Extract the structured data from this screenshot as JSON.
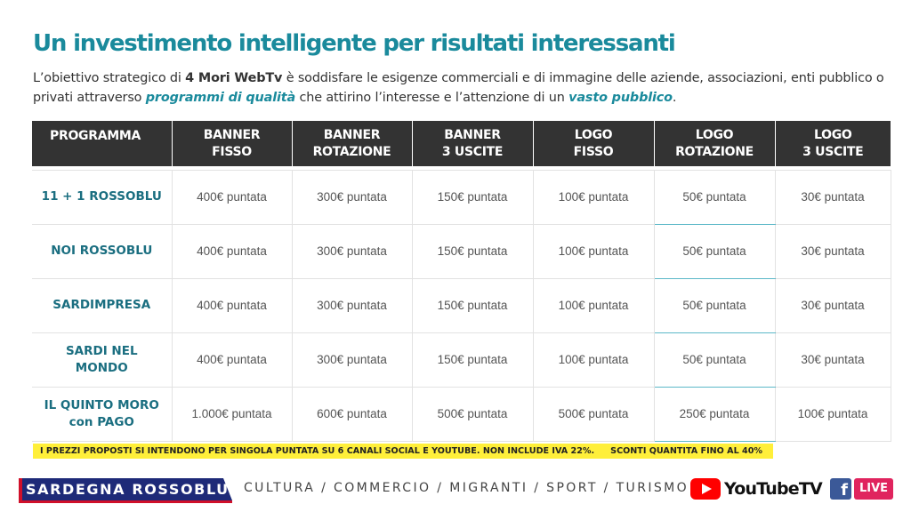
{
  "title": "Un investimento intelligente per risultati interessanti",
  "intro": {
    "part1": "L’obiettivo strategico di ",
    "brand": "4 Mori WebTv",
    "part2": " è soddisfare le esigenze commerciali e di immagine delle aziende, associazioni, enti pubblico o privati attraverso ",
    "highlight1": "programmi di qualità",
    "part3": " che attirino l’interesse e l’attenzione di un ",
    "highlight2": "vasto pubblico",
    "part4": "."
  },
  "table": {
    "headers": [
      [
        "PROGRAMMA"
      ],
      [
        "BANNER",
        "FISSO"
      ],
      [
        "BANNER",
        "ROTAZIONE"
      ],
      [
        "BANNER",
        "3 USCITE"
      ],
      [
        "LOGO",
        "FISSO"
      ],
      [
        "LOGO",
        "ROTAZIONE"
      ],
      [
        "LOGO",
        "3 USCITE"
      ]
    ],
    "rows": [
      {
        "program": [
          "11 + 1 ROSSOBLU"
        ],
        "prices": [
          "400€ puntata",
          "300€ puntata",
          "150€ puntata",
          "100€ puntata",
          "50€ puntata",
          "30€ puntata"
        ]
      },
      {
        "program": [
          "NOI ROSSOBLU"
        ],
        "prices": [
          "400€ puntata",
          "300€ puntata",
          "150€ puntata",
          "100€ puntata",
          "50€ puntata",
          "30€ puntata"
        ]
      },
      {
        "program": [
          "SARDIMPRESA"
        ],
        "prices": [
          "400€ puntata",
          "300€ puntata",
          "150€ puntata",
          "100€ puntata",
          "50€ puntata",
          "30€ puntata"
        ]
      },
      {
        "program": [
          "SARDI NEL",
          "MONDO"
        ],
        "prices": [
          "400€ puntata",
          "300€ puntata",
          "150€ puntata",
          "100€ puntata",
          "50€ puntata",
          "30€ puntata"
        ]
      },
      {
        "program": [
          "IL QUINTO MORO",
          "con PAGO"
        ],
        "prices": [
          "1.000€ puntata",
          "600€ puntata",
          "500€ puntata",
          "500€ puntata",
          "250€ puntata",
          "100€ puntata"
        ]
      }
    ]
  },
  "note": {
    "text": "I PREZZI PROPOSTI SI INTENDONO PER SINGOLA PUNTATA SU 6 CANALI SOCIAL E YOUTUBE. NON INCLUDE IVA 22%.",
    "discount": "SCONTI QUANTITA FINO AL 40%"
  },
  "footer": {
    "brand": "SARDEGNA ROSSOBLU",
    "tagline": "CULTURA / COMMERCIO / MIGRANTI / SPORT / TURISMO",
    "youtube_label": "YouTubeTV",
    "facebook_glyph": "f",
    "live_label": "LIVE",
    "colors": {
      "accent": "#1a8a9c",
      "brand_blue": "#1e2a78",
      "brand_red": "#d0102a",
      "note_yellow": "#ffef3a",
      "header_dark": "#333333"
    },
    "icons": [
      "youtube-icon",
      "facebook-icon"
    ]
  }
}
